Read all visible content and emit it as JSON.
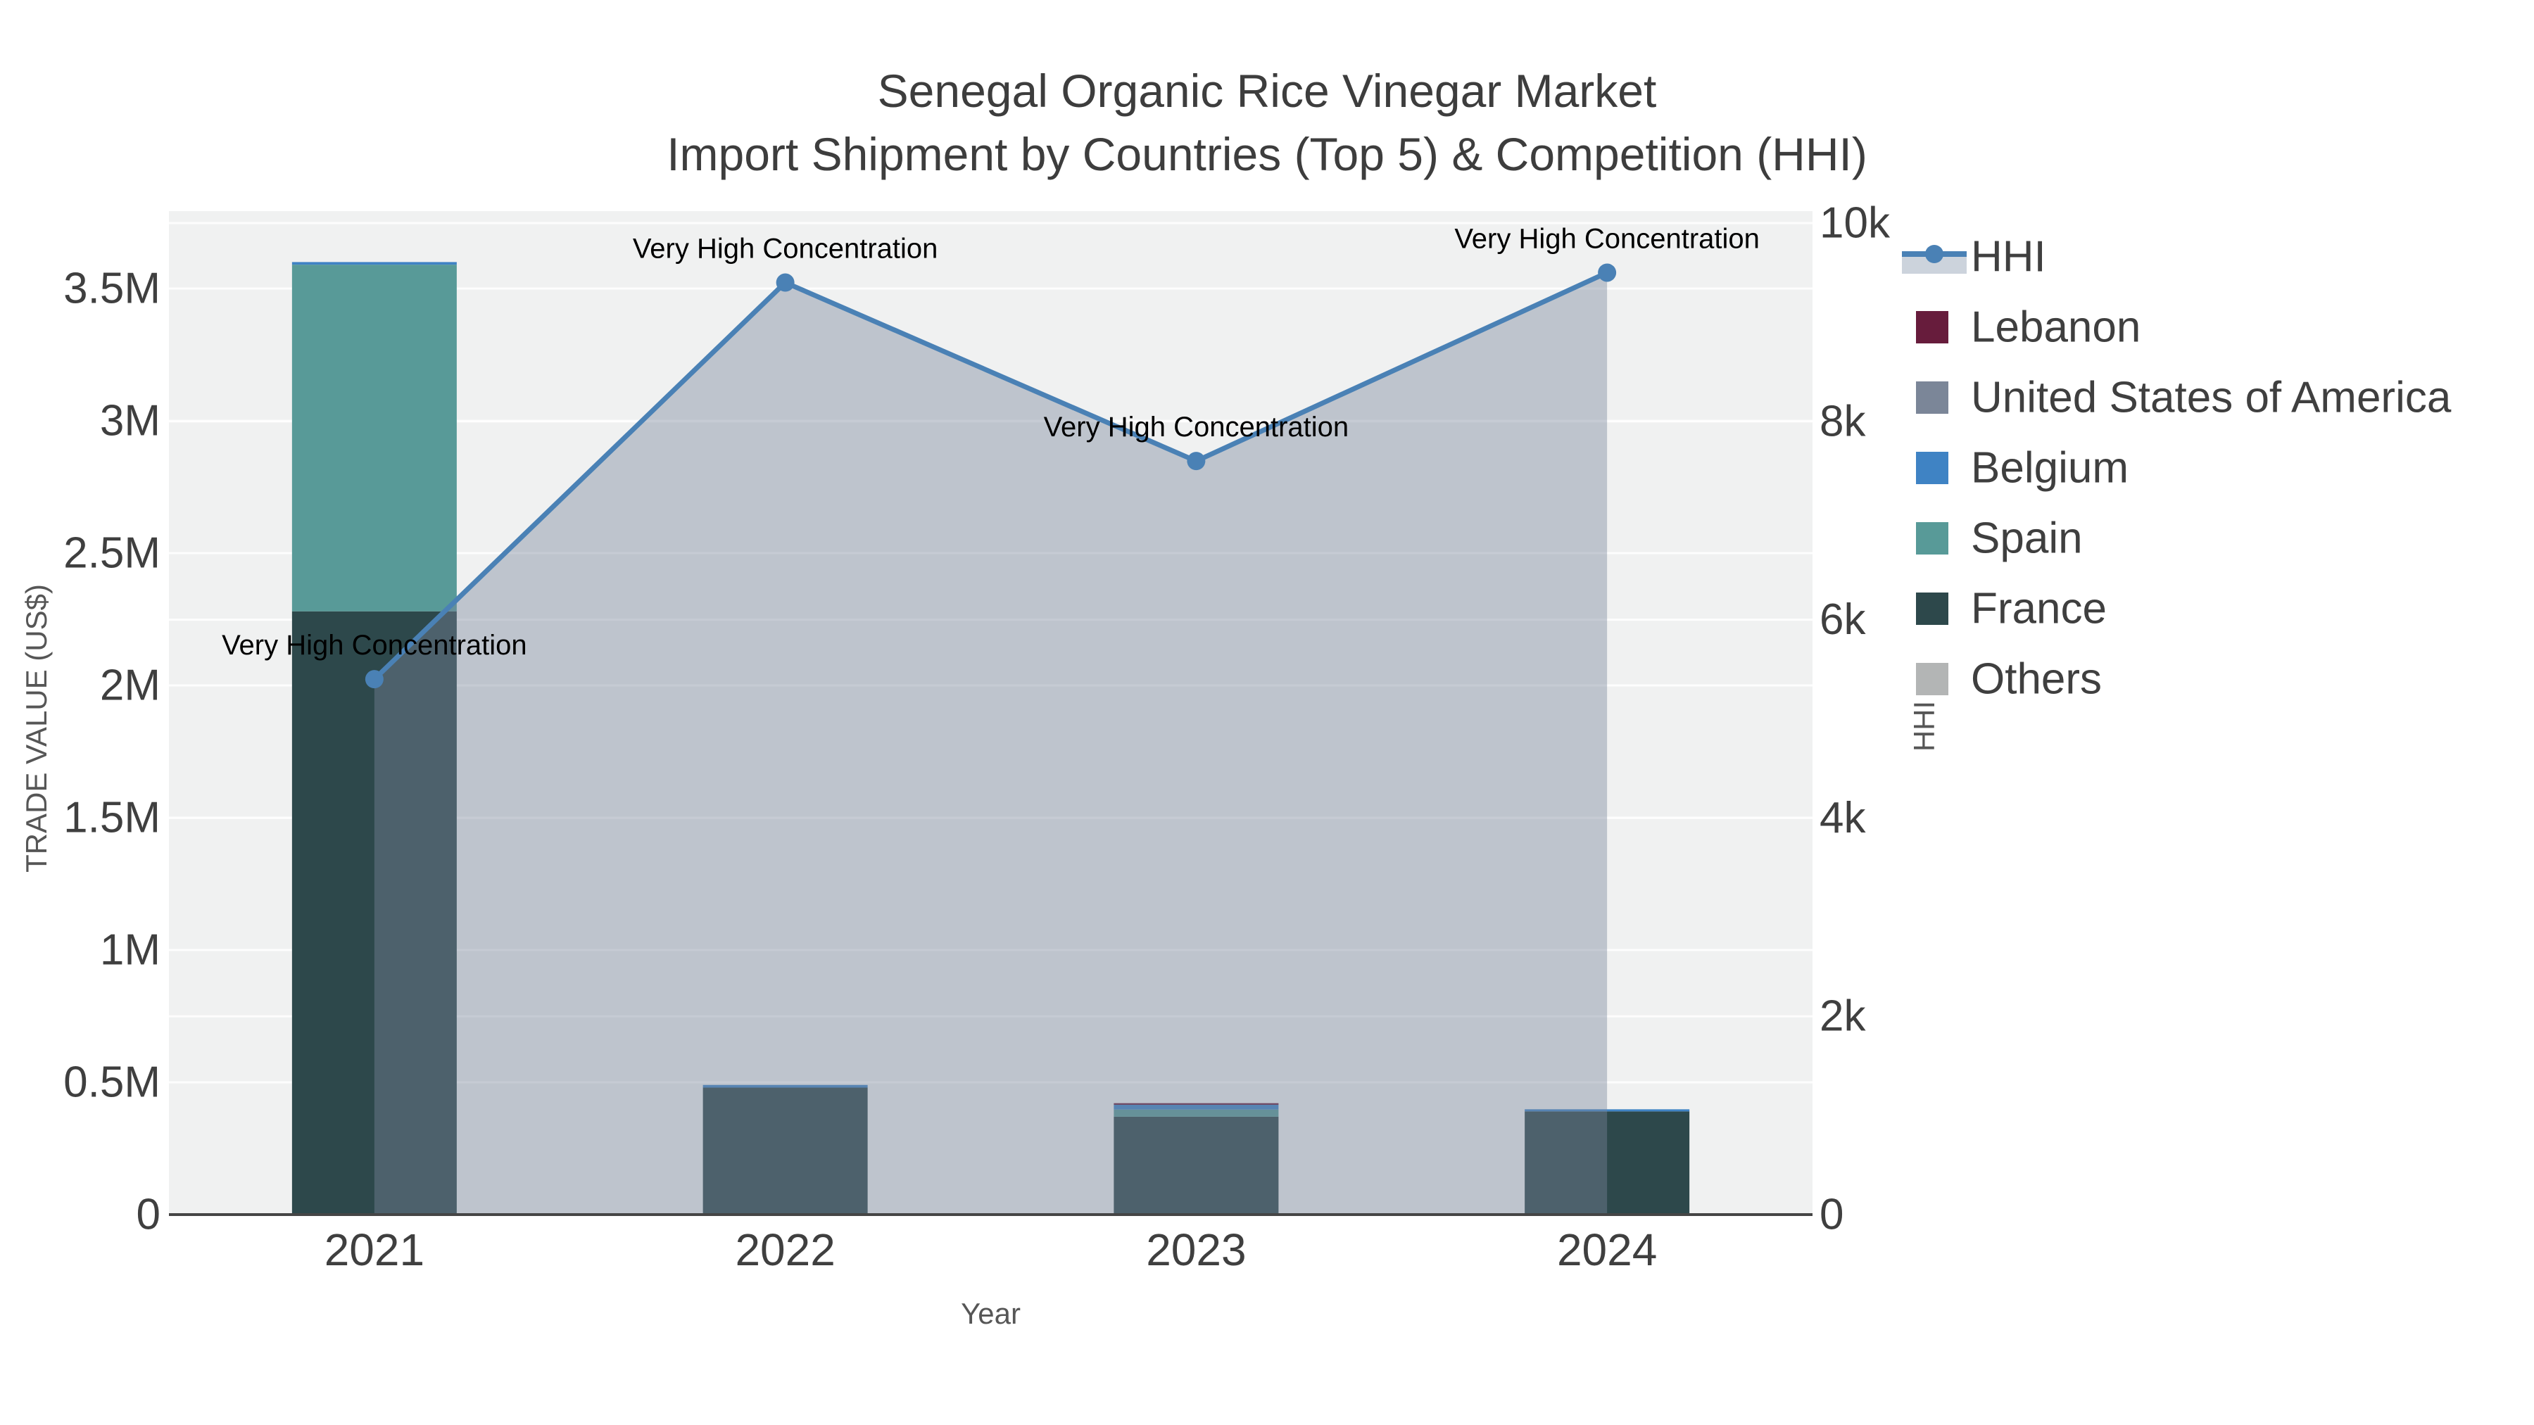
{
  "title": {
    "line1": "Senegal Organic Rice Vinegar Market",
    "line2": "Import Shipment by Countries (Top 5) & Competition (HHI)"
  },
  "axes": {
    "x": {
      "title": "Year",
      "ticks": [
        "2021",
        "2022",
        "2023",
        "2024"
      ]
    },
    "y_left": {
      "title": "TRADE VALUE (US$)",
      "ticks": [
        {
          "label": "0",
          "value": 0
        },
        {
          "label": "0.5M",
          "value": 500000
        },
        {
          "label": "1M",
          "value": 1000000
        },
        {
          "label": "1.5M",
          "value": 1500000
        },
        {
          "label": "2M",
          "value": 2000000
        },
        {
          "label": "2.5M",
          "value": 2500000
        },
        {
          "label": "3M",
          "value": 3000000
        },
        {
          "label": "3.5M",
          "value": 3500000
        }
      ]
    },
    "y_right": {
      "title": "HHI",
      "ticks": [
        {
          "label": "0",
          "value": 0
        },
        {
          "label": "2k",
          "value": 2000
        },
        {
          "label": "4k",
          "value": 4000
        },
        {
          "label": "6k",
          "value": 6000
        },
        {
          "label": "8k",
          "value": 8000
        },
        {
          "label": "10k",
          "value": 10000
        }
      ]
    }
  },
  "legend": {
    "items": [
      {
        "label": "HHI",
        "type": "line",
        "color": "#4a81b5",
        "band_color": "#ccd3dc"
      },
      {
        "label": "Lebanon",
        "type": "swatch",
        "color": "#671c3c"
      },
      {
        "label": "United States of America",
        "type": "swatch",
        "color": "#7b8698"
      },
      {
        "label": "Belgium",
        "type": "swatch",
        "color": "#3f83c4"
      },
      {
        "label": "Spain",
        "type": "swatch",
        "color": "#589a98"
      },
      {
        "label": "France",
        "type": "swatch",
        "color": "#2d484b"
      },
      {
        "label": "Others",
        "type": "swatch",
        "color": "#b3b5b5"
      }
    ]
  },
  "chart_data": {
    "type": "combo-stacked-bar-plus-line-area",
    "title": "Senegal Organic Rice Vinegar Market — Import Shipment by Countries (Top 5) & Competition (HHI)",
    "categories": [
      "2021",
      "2022",
      "2023",
      "2024"
    ],
    "xlabel": "Year",
    "ylabel_left": "TRADE VALUE (US$)",
    "ylabel_right": "HHI",
    "ylim_left": [
      0,
      3790000
    ],
    "ylim_right": [
      0,
      10120
    ],
    "grid": true,
    "legend_position": "right",
    "bar_stack_order_bottom_to_top": [
      "France",
      "Spain",
      "Belgium",
      "United States of America",
      "Lebanon",
      "Others"
    ],
    "series": [
      {
        "name": "Lebanon",
        "type": "bar",
        "color": "#671c3c",
        "values": [
          0,
          0,
          6000,
          0
        ]
      },
      {
        "name": "United States of America",
        "type": "bar",
        "color": "#7b8698",
        "values": [
          0,
          0,
          0,
          0
        ]
      },
      {
        "name": "Belgium",
        "type": "bar",
        "color": "#3f83c4",
        "values": [
          10000,
          10000,
          18000,
          8000
        ]
      },
      {
        "name": "Spain",
        "type": "bar",
        "color": "#589a98",
        "values": [
          1310000,
          0,
          27000,
          0
        ]
      },
      {
        "name": "France",
        "type": "bar",
        "color": "#2d484b",
        "values": [
          2280000,
          480000,
          370000,
          390000
        ]
      },
      {
        "name": "Others",
        "type": "bar",
        "color": "#b3b5b5",
        "values": [
          0,
          0,
          0,
          0
        ]
      }
    ],
    "bar_totals": [
      3600000,
      490000,
      421000,
      398000
    ],
    "line_series": {
      "name": "HHI",
      "type": "line-area",
      "axis": "right",
      "color": "#4a81b5",
      "fill_color": "rgba(121,134,155,0.42)",
      "values": [
        5400,
        9400,
        7600,
        9500
      ]
    },
    "annotations": [
      {
        "text": "Very High Concentration",
        "category": "2021",
        "hhi": 5400
      },
      {
        "text": "Very High Concentration",
        "category": "2022",
        "hhi": 9400
      },
      {
        "text": "Very High Concentration",
        "category": "2023",
        "hhi": 7600
      },
      {
        "text": "Very High Concentration",
        "category": "2024",
        "hhi": 9500
      }
    ]
  },
  "style": {
    "plot_bg": "#f0f1f1",
    "grid_color": "#ffffff",
    "axis_line_color": "#454545",
    "tick_label_color": "#3f3f3f",
    "title_color": "#3d3d3d",
    "axis_title_color": "#565656",
    "annotation_color": "#000000"
  }
}
